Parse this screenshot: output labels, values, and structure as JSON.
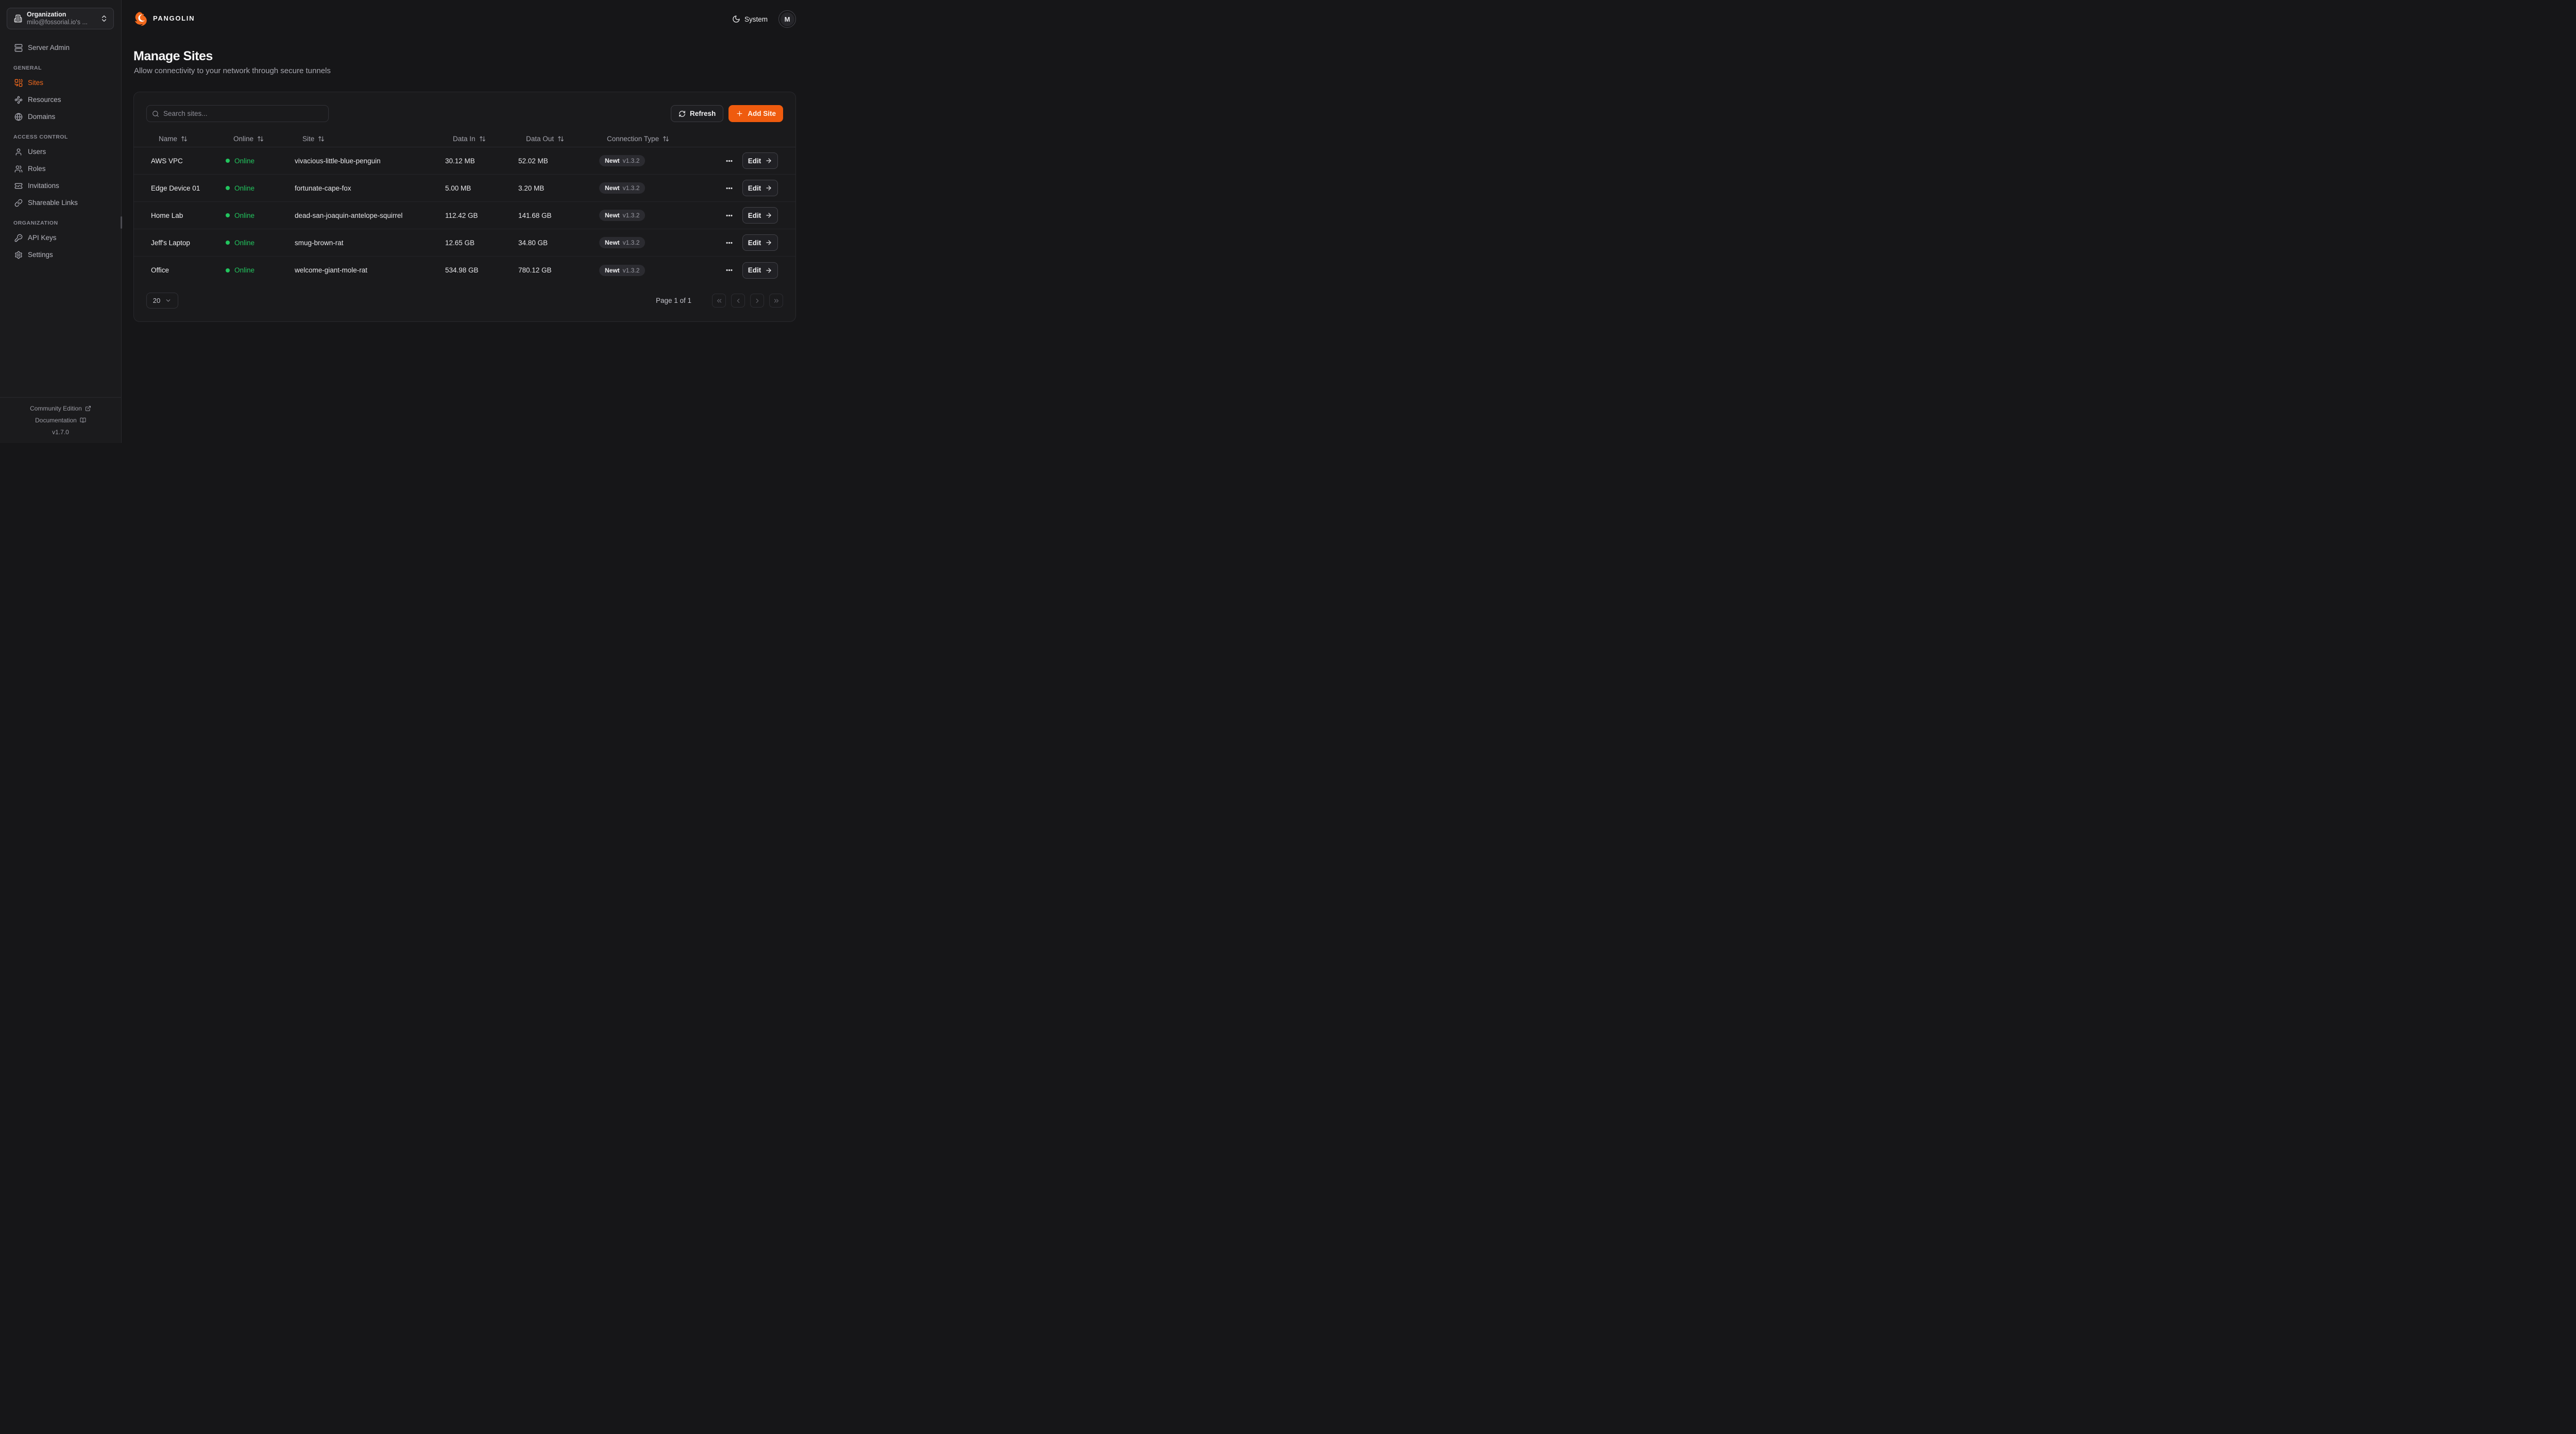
{
  "colors": {
    "accent": "#EF5B0E",
    "accent_text": "#F2691D",
    "online_green": "#22C55E",
    "background": "#161618",
    "card": "#1A1A1C"
  },
  "brand": {
    "name": "PANGOLIN"
  },
  "topbar": {
    "theme_label": "System",
    "avatar_initial": "M"
  },
  "sidebar": {
    "org_picker": {
      "label": "Organization",
      "value": "milo@fossorial.io's ...",
      "icon": "building-icon"
    },
    "server_admin": {
      "label": "Server Admin",
      "icon": "server-icon"
    },
    "sections": [
      {
        "label": "GENERAL",
        "items": [
          {
            "label": "Sites",
            "icon": "combine-icon",
            "active": true
          },
          {
            "label": "Resources",
            "icon": "waypoints-icon",
            "active": false
          },
          {
            "label": "Domains",
            "icon": "globe-icon",
            "active": false
          }
        ]
      },
      {
        "label": "ACCESS CONTROL",
        "items": [
          {
            "label": "Users",
            "icon": "user-icon",
            "active": false
          },
          {
            "label": "Roles",
            "icon": "users-icon",
            "active": false
          },
          {
            "label": "Invitations",
            "icon": "ticket-check-icon",
            "active": false
          },
          {
            "label": "Shareable Links",
            "icon": "link-icon",
            "active": false
          }
        ]
      },
      {
        "label": "ORGANIZATION",
        "items": [
          {
            "label": "API Keys",
            "icon": "key-icon",
            "active": false
          },
          {
            "label": "Settings",
            "icon": "gear-icon",
            "active": false
          }
        ]
      }
    ],
    "footer": {
      "community_label": "Community Edition",
      "docs_label": "Documentation",
      "version": "v1.7.0"
    }
  },
  "page": {
    "title": "Manage Sites",
    "subtitle": "Allow connectivity to your network through secure tunnels"
  },
  "toolbar": {
    "search_placeholder": "Search sites...",
    "refresh_label": "Refresh",
    "add_site_label": "Add Site"
  },
  "table": {
    "columns": [
      "Name",
      "Online",
      "Site",
      "Data In",
      "Data Out",
      "Connection Type"
    ],
    "edit_label": "Edit",
    "rows": [
      {
        "name": "AWS VPC",
        "status": "Online",
        "site": "vivacious-little-blue-penguin",
        "data_in": "30.12 MB",
        "data_out": "52.02 MB",
        "conn_type": "Newt",
        "conn_version": "v1.3.2"
      },
      {
        "name": "Edge Device 01",
        "status": "Online",
        "site": "fortunate-cape-fox",
        "data_in": "5.00 MB",
        "data_out": "3.20 MB",
        "conn_type": "Newt",
        "conn_version": "v1.3.2"
      },
      {
        "name": "Home Lab",
        "status": "Online",
        "site": "dead-san-joaquin-antelope-squirrel",
        "data_in": "112.42 GB",
        "data_out": "141.68 GB",
        "conn_type": "Newt",
        "conn_version": "v1.3.2"
      },
      {
        "name": "Jeff's Laptop",
        "status": "Online",
        "site": "smug-brown-rat",
        "data_in": "12.65 GB",
        "data_out": "34.80 GB",
        "conn_type": "Newt",
        "conn_version": "v1.3.2"
      },
      {
        "name": "Office",
        "status": "Online",
        "site": "welcome-giant-mole-rat",
        "data_in": "534.98 GB",
        "data_out": "780.12 GB",
        "conn_type": "Newt",
        "conn_version": "v1.3.2"
      }
    ]
  },
  "pagination": {
    "page_size": "20",
    "status": "Page 1 of 1"
  }
}
